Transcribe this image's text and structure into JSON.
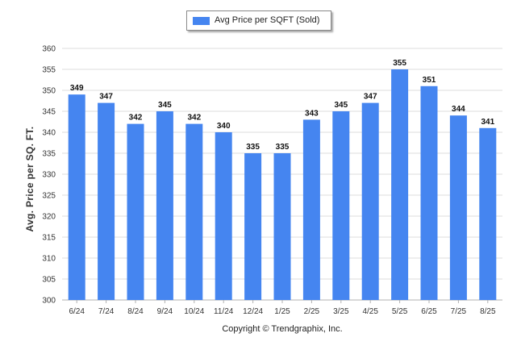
{
  "legend": {
    "label": "Avg Price per SQFT (Sold)",
    "color": "#4585f0"
  },
  "footer": {
    "copyright": "Copyright © Trendgraphix, Inc."
  },
  "colors": {
    "bar": "#4585f0",
    "grid": "#dcdcdc",
    "axis": "#b0b0b0"
  },
  "chart_data": {
    "type": "bar",
    "categories": [
      "6/24",
      "7/24",
      "8/24",
      "9/24",
      "10/24",
      "11/24",
      "12/24",
      "1/25",
      "2/25",
      "3/25",
      "4/25",
      "5/25",
      "6/25",
      "7/25",
      "8/25"
    ],
    "series": [
      {
        "name": "Avg Price per SQFT (Sold)",
        "values": [
          349,
          347,
          342,
          345,
          342,
          340,
          335,
          335,
          343,
          345,
          347,
          355,
          351,
          344,
          341
        ]
      }
    ],
    "xlabel": "",
    "ylabel": "Avg. Price per SQ. FT.",
    "ylim": [
      300,
      360
    ],
    "yticks": [
      300,
      305,
      310,
      315,
      320,
      325,
      330,
      335,
      340,
      345,
      350,
      355,
      360
    ],
    "grid": true,
    "legend_position": "top-center",
    "data_labels": true
  }
}
